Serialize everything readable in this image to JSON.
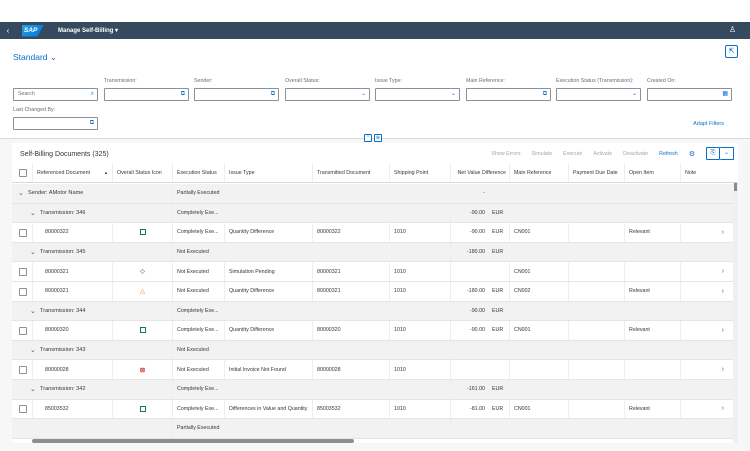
{
  "shell": {
    "app_title": "Manage Self-Billing ▾",
    "logo": "SAP"
  },
  "header": {
    "variant": "Standard",
    "filters": [
      {
        "label": "Transmission:",
        "value": ""
      },
      {
        "label": "Sender:",
        "value": ""
      },
      {
        "label": "Overall Status:",
        "value": ""
      },
      {
        "label": "Issue Type:",
        "value": ""
      },
      {
        "label": "Main Reference:",
        "value": ""
      },
      {
        "label": "Execution Status (Transmission):",
        "value": ""
      },
      {
        "label": "Created On:",
        "value": ""
      },
      {
        "label": "Last Changed By:",
        "value": ""
      }
    ],
    "search_placeholder": "Search",
    "adapt_filters": "Adapt Filters"
  },
  "table": {
    "title": "Self-Billing Documents (325)",
    "actions": [
      "Show Errors",
      "Simulate",
      "Execute",
      "Activate",
      "Deactivate"
    ],
    "refresh": "Refresh",
    "columns": [
      "Referenced Document",
      "Overall Status Icon",
      "Execution Status",
      "Issue Type",
      "Transmitted Document",
      "Shipping Point",
      "Net Value Difference",
      "Main Reference",
      "Payment Due Date",
      "Open Item",
      "Note"
    ],
    "rows": [
      {
        "kind": "g1",
        "label": "Sender: AMotor Name",
        "exec": "Partially Executed",
        "net": "-",
        "cur": ""
      },
      {
        "kind": "g2",
        "label": "Transmission: 346",
        "exec": "Completely Exe...",
        "net": "-90.00",
        "cur": "EUR"
      },
      {
        "kind": "item",
        "ref": "80000322",
        "icon": "ok",
        "exec": "Completely Exe...",
        "issue": "Quantity Difference",
        "tdoc": "80000322",
        "ship": "1010",
        "net": "-90.00",
        "cur": "EUR",
        "main": "CN001",
        "due": "",
        "open": "Relevant",
        "nav": true
      },
      {
        "kind": "g2",
        "label": "Transmission: 345",
        "exec": "Not Executed",
        "net": "-180.00",
        "cur": "EUR"
      },
      {
        "kind": "item",
        "ref": "80000321",
        "icon": "dia",
        "exec": "Not Executed",
        "issue": "Simulation Pending",
        "tdoc": "80000321",
        "ship": "1010",
        "net": "",
        "cur": "",
        "main": "CN001",
        "due": "",
        "open": "",
        "nav": true
      },
      {
        "kind": "item",
        "ref": "80000321",
        "icon": "warn",
        "exec": "Not Executed",
        "issue": "Quantity Difference",
        "tdoc": "80000321",
        "ship": "1010",
        "net": "-180.00",
        "cur": "EUR",
        "main": "CN002",
        "due": "",
        "open": "Relevant",
        "nav": true
      },
      {
        "kind": "g2",
        "label": "Transmission: 344",
        "exec": "Completely Exe...",
        "net": "-90.00",
        "cur": "EUR"
      },
      {
        "kind": "item",
        "ref": "80000320",
        "icon": "ok",
        "exec": "Completely Exe...",
        "issue": "Quantity Difference",
        "tdoc": "80000320",
        "ship": "1010",
        "net": "-90.00",
        "cur": "EUR",
        "main": "CN001",
        "due": "",
        "open": "Relevant",
        "nav": true
      },
      {
        "kind": "g2",
        "label": "Transmission: 343",
        "exec": "Not Executed",
        "net": "",
        "cur": ""
      },
      {
        "kind": "item",
        "ref": "80000028",
        "icon": "err",
        "exec": "Not Executed",
        "issue": "Initial Invoice Not Found",
        "tdoc": "80000028",
        "ship": "1010",
        "net": "",
        "cur": "",
        "main": "",
        "due": "",
        "open": "",
        "nav": true
      },
      {
        "kind": "g2",
        "label": "Transmission: 342",
        "exec": "Completely Exe...",
        "net": "-161.00",
        "cur": "EUR"
      },
      {
        "kind": "item",
        "ref": "85003532",
        "icon": "ok",
        "exec": "Completely Exe...",
        "issue": "Differences in Value and Quantity",
        "tdoc": "85003532",
        "ship": "1010",
        "net": "-81.00",
        "cur": "EUR",
        "main": "CN001",
        "due": "",
        "open": "Relevant",
        "nav": true
      },
      {
        "kind": "tail",
        "label": "",
        "exec": "Partially Executed",
        "net": "",
        "cur": ""
      }
    ]
  },
  "colors": {
    "shell": "#354a5f",
    "accent": "#0a6ed1",
    "success": "#107e3e",
    "warning": "#e9730c",
    "error": "#bb0000"
  }
}
